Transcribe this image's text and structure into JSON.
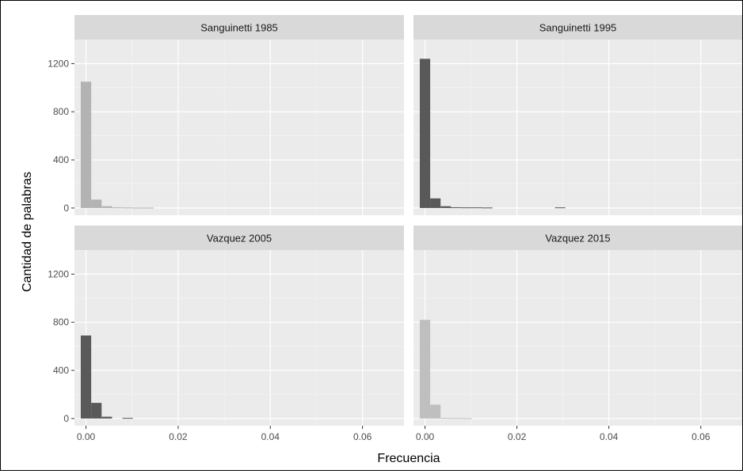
{
  "chart_data": {
    "type": "bar",
    "xlabel": "Frecuencia",
    "ylabel": "Cantidad de palabras",
    "xlim": [
      -0.0025,
      0.069
    ],
    "ylim": [
      -60,
      1400
    ],
    "x_ticks": [
      0.0,
      0.02,
      0.04,
      0.06
    ],
    "x_tick_labels": [
      "0.00",
      "0.02",
      "0.04",
      "0.06"
    ],
    "y_ticks": [
      0,
      400,
      800,
      1200
    ],
    "y_tick_labels": [
      "0",
      "400",
      "800",
      "1200"
    ],
    "bin_width": 0.00226,
    "grid": true,
    "panels": [
      {
        "title": "Sanguinetti 1985",
        "color": "#b3b3b3",
        "bins": [
          {
            "x": 0.0,
            "count": 1050
          },
          {
            "x": 0.00226,
            "count": 70
          },
          {
            "x": 0.00452,
            "count": 15
          },
          {
            "x": 0.00678,
            "count": 5
          },
          {
            "x": 0.00904,
            "count": 4
          },
          {
            "x": 0.0113,
            "count": 3
          },
          {
            "x": 0.01356,
            "count": 3
          }
        ]
      },
      {
        "title": "Sanguinetti 1995",
        "color": "#595959",
        "bins": [
          {
            "x": 0.0,
            "count": 1240
          },
          {
            "x": 0.00226,
            "count": 80
          },
          {
            "x": 0.00452,
            "count": 15
          },
          {
            "x": 0.00678,
            "count": 6
          },
          {
            "x": 0.00904,
            "count": 5
          },
          {
            "x": 0.0113,
            "count": 5
          },
          {
            "x": 0.01356,
            "count": 4
          },
          {
            "x": 0.0294,
            "count": 5
          }
        ]
      },
      {
        "title": "Vazquez 2005",
        "color": "#595959",
        "bins": [
          {
            "x": 0.0,
            "count": 690
          },
          {
            "x": 0.00226,
            "count": 130
          },
          {
            "x": 0.00452,
            "count": 15
          },
          {
            "x": 0.00904,
            "count": 5
          }
        ]
      },
      {
        "title": "Vazquez 2015",
        "color": "#bfbfbf",
        "bins": [
          {
            "x": 0.0,
            "count": 820
          },
          {
            "x": 0.00226,
            "count": 115
          },
          {
            "x": 0.00452,
            "count": 5
          },
          {
            "x": 0.00678,
            "count": 4
          },
          {
            "x": 0.00904,
            "count": 3
          }
        ]
      }
    ]
  }
}
